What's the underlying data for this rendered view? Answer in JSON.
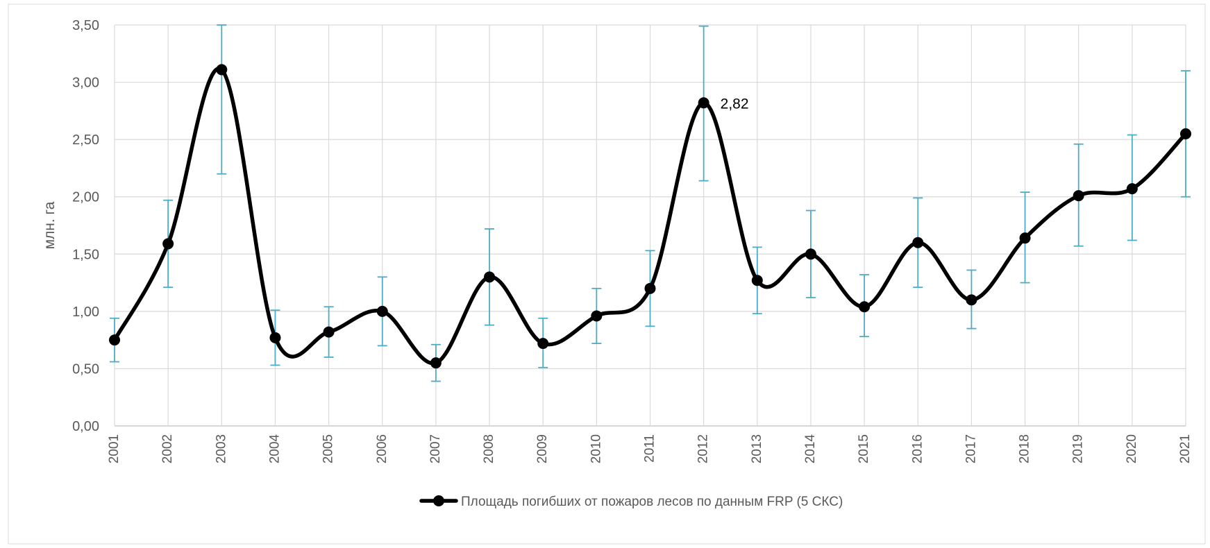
{
  "chart_data": {
    "type": "line",
    "smooth": true,
    "title": "",
    "xlabel": "",
    "ylabel": "млн. га",
    "ylim": [
      0,
      3.5
    ],
    "y_ticks": [
      0,
      0.5,
      1,
      1.5,
      2,
      2.5,
      3,
      3.5
    ],
    "y_tick_labels": [
      "0,00",
      "0,50",
      "1,00",
      "1,50",
      "2,00",
      "2,50",
      "3,00",
      "3,50"
    ],
    "grid": true,
    "legend_position": "bottom",
    "categories": [
      "2001",
      "2002",
      "2003",
      "2004",
      "2005",
      "2006",
      "2007",
      "2008",
      "2009",
      "2010",
      "2011",
      "2012",
      "2013",
      "2014",
      "2015",
      "2016",
      "2017",
      "2018",
      "2019",
      "2020",
      "2021"
    ],
    "series": [
      {
        "name": "Площадь погибших от пожаров лесов по данным FRP (5 СКС)",
        "color": "#000000",
        "values": [
          0.75,
          1.59,
          3.11,
          0.77,
          0.82,
          1.0,
          0.55,
          1.3,
          0.72,
          0.96,
          1.2,
          2.82,
          1.27,
          1.5,
          1.04,
          1.6,
          1.1,
          1.64,
          2.01,
          2.07,
          2.55
        ],
        "error_low": [
          0.56,
          1.21,
          2.2,
          0.53,
          0.6,
          0.7,
          0.39,
          0.88,
          0.51,
          0.72,
          0.87,
          2.14,
          0.98,
          1.12,
          0.78,
          1.21,
          0.85,
          1.25,
          1.57,
          1.62,
          2.0
        ],
        "error_high": [
          0.94,
          1.97,
          3.5,
          1.01,
          1.04,
          1.3,
          0.71,
          1.72,
          0.94,
          1.2,
          1.53,
          3.49,
          1.56,
          1.88,
          1.32,
          1.99,
          1.36,
          2.04,
          2.46,
          2.54,
          3.1
        ],
        "error_color": "#4bacc6"
      }
    ],
    "annotations": [
      {
        "category": "2012",
        "value": 2.82,
        "text": "2,82"
      }
    ]
  }
}
